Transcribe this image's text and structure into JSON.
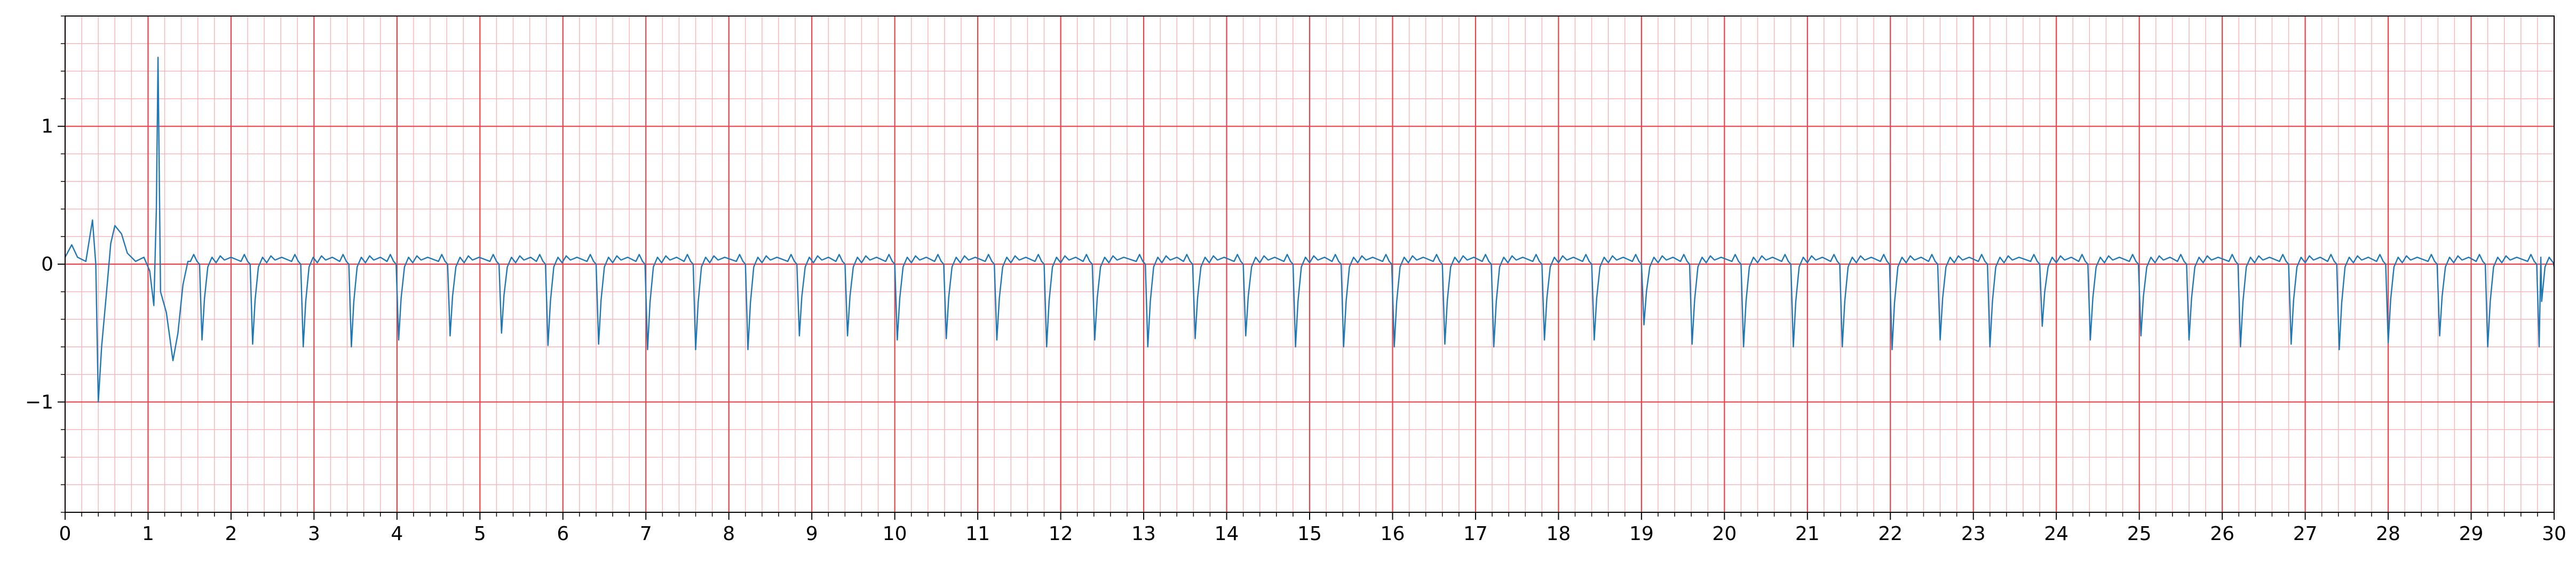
{
  "chart_data": {
    "type": "line",
    "title": "",
    "xlabel": "",
    "ylabel": "",
    "xlim": [
      0,
      30
    ],
    "ylim": [
      -1.8,
      1.8
    ],
    "x_ticks": [
      "0",
      "1",
      "2",
      "3",
      "4",
      "5",
      "6",
      "7",
      "8",
      "9",
      "10",
      "11",
      "12",
      "13",
      "14",
      "15",
      "16",
      "17",
      "18",
      "19",
      "20",
      "21",
      "22",
      "23",
      "24",
      "25",
      "26",
      "27",
      "28",
      "29",
      "30"
    ],
    "y_ticks": [
      {
        "value": -1,
        "label": "−1"
      },
      {
        "value": 0,
        "label": "0"
      },
      {
        "value": 1,
        "label": "1"
      }
    ],
    "grid": {
      "major_x_step": 1,
      "minor_x_step": 0.2,
      "major_y_step": 1,
      "minor_y_step": 0.2,
      "major_color": "#e8434a",
      "minor_color": "#f6b3b6"
    },
    "series": [
      {
        "color": "#1f77b4",
        "beat_times": [
          0.45,
          1.12,
          1.65,
          2.26,
          2.87,
          3.45,
          4.02,
          4.64,
          5.26,
          5.82,
          6.43,
          7.02,
          7.6,
          8.23,
          8.85,
          9.43,
          10.03,
          10.62,
          11.23,
          11.83,
          12.41,
          13.05,
          13.62,
          14.23,
          14.83,
          15.41,
          16.02,
          16.63,
          17.22,
          17.83,
          18.43,
          19.03,
          19.61,
          20.23,
          20.83,
          21.42,
          22.02,
          22.6,
          23.2,
          23.83,
          24.41,
          25.02,
          25.6,
          26.22,
          26.83,
          27.41,
          28.0,
          28.62,
          29.2,
          29.82
        ],
        "beat_depths": [
          -1.0,
          -0.28,
          -0.55,
          -0.58,
          -0.6,
          -0.6,
          -0.55,
          -0.52,
          -0.5,
          -0.59,
          -0.58,
          -0.62,
          -0.62,
          -0.62,
          -0.52,
          -0.52,
          -0.55,
          -0.54,
          -0.55,
          -0.6,
          -0.55,
          -0.6,
          -0.54,
          -0.52,
          -0.6,
          -0.6,
          -0.6,
          -0.58,
          -0.6,
          -0.55,
          -0.55,
          -0.44,
          -0.58,
          -0.6,
          -0.6,
          -0.6,
          -0.62,
          -0.55,
          -0.6,
          -0.45,
          -0.55,
          -0.52,
          -0.55,
          -0.6,
          -0.58,
          -0.62,
          -0.57,
          -0.52,
          -0.6,
          -0.6
        ],
        "spike": {
          "x": 1.12,
          "y": 1.5
        },
        "initial_artifact": [
          {
            "x": 0.0,
            "y": 0.05
          },
          {
            "x": 0.08,
            "y": 0.14
          },
          {
            "x": 0.15,
            "y": 0.05
          },
          {
            "x": 0.25,
            "y": 0.02
          },
          {
            "x": 0.33,
            "y": 0.32
          },
          {
            "x": 0.37,
            "y": 0.0
          },
          {
            "x": 0.4,
            "y": -1.0
          },
          {
            "x": 0.44,
            "y": -0.6
          },
          {
            "x": 0.5,
            "y": -0.2
          },
          {
            "x": 0.55,
            "y": 0.15
          },
          {
            "x": 0.6,
            "y": 0.28
          },
          {
            "x": 0.68,
            "y": 0.22
          },
          {
            "x": 0.75,
            "y": 0.08
          },
          {
            "x": 0.85,
            "y": 0.02
          },
          {
            "x": 0.95,
            "y": 0.05
          },
          {
            "x": 1.02,
            "y": -0.05
          },
          {
            "x": 1.07,
            "y": -0.3
          },
          {
            "x": 1.1,
            "y": 0.4
          },
          {
            "x": 1.12,
            "y": 1.5
          },
          {
            "x": 1.15,
            "y": -0.2
          },
          {
            "x": 1.22,
            "y": -0.35
          },
          {
            "x": 1.3,
            "y": -0.7
          },
          {
            "x": 1.36,
            "y": -0.5
          },
          {
            "x": 1.42,
            "y": -0.15
          },
          {
            "x": 1.48,
            "y": 0.02
          }
        ]
      }
    ]
  }
}
